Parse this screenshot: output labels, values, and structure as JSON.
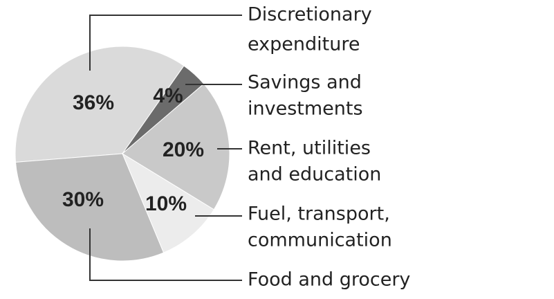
{
  "chart_data": {
    "type": "pie",
    "categories": [
      [
        "Discretionary",
        "expenditure"
      ],
      [
        "Savings and",
        "investments"
      ],
      [
        "Rent, utilities",
        "and education"
      ],
      [
        "Fuel, transport,",
        "communication"
      ],
      [
        "Food and grocery"
      ]
    ],
    "values": [
      36,
      4,
      20,
      10,
      30
    ],
    "value_labels": [
      "36%",
      "4%",
      "20%",
      "10%",
      "30%"
    ],
    "colors": [
      "#dadada",
      "#6b6b6b",
      "#c9c9c9",
      "#ececec",
      "#bdbdbd"
    ]
  }
}
